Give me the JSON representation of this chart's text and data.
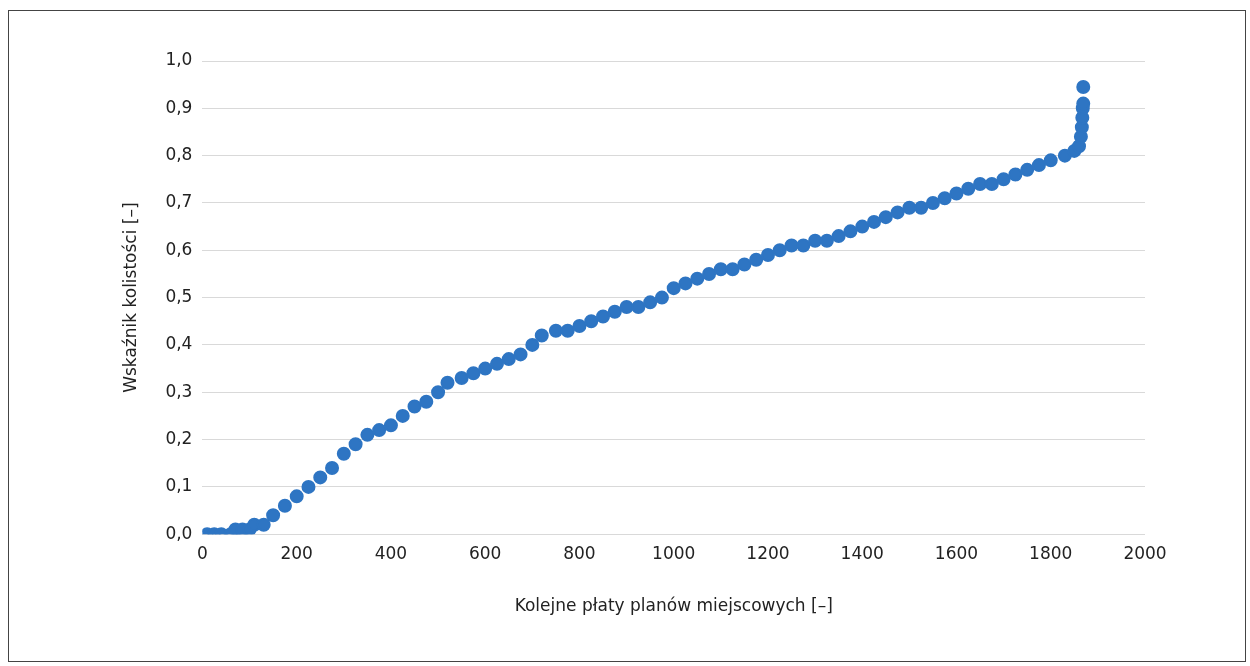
{
  "chart_data": {
    "type": "scatter",
    "xlabel": "Kolejne płaty planów miejscowych [–]",
    "ylabel": "Wskaźnik kolistości [–]",
    "x": [
      10,
      25,
      40,
      60,
      70,
      85,
      100,
      110,
      130,
      150,
      175,
      200,
      225,
      250,
      275,
      300,
      325,
      350,
      375,
      400,
      425,
      450,
      475,
      500,
      520,
      550,
      575,
      600,
      625,
      650,
      675,
      700,
      720,
      750,
      775,
      800,
      825,
      850,
      875,
      900,
      925,
      950,
      975,
      1000,
      1025,
      1050,
      1075,
      1100,
      1125,
      1150,
      1175,
      1200,
      1225,
      1250,
      1275,
      1300,
      1325,
      1350,
      1375,
      1400,
      1425,
      1450,
      1475,
      1500,
      1525,
      1550,
      1575,
      1600,
      1625,
      1650,
      1675,
      1700,
      1725,
      1750,
      1775,
      1800,
      1830,
      1850,
      1860,
      1864,
      1866,
      1867,
      1868,
      1869,
      1869
    ],
    "series": [
      {
        "color": "#2e75c3",
        "values": [
          0,
          0,
          0,
          0,
          0.01,
          0.01,
          0.01,
          0.02,
          0.02,
          0.04,
          0.06,
          0.08,
          0.1,
          0.12,
          0.14,
          0.17,
          0.19,
          0.21,
          0.22,
          0.23,
          0.25,
          0.27,
          0.28,
          0.3,
          0.32,
          0.33,
          0.34,
          0.35,
          0.36,
          0.37,
          0.38,
          0.4,
          0.42,
          0.43,
          0.43,
          0.44,
          0.45,
          0.46,
          0.47,
          0.48,
          0.48,
          0.49,
          0.5,
          0.52,
          0.53,
          0.54,
          0.55,
          0.56,
          0.56,
          0.57,
          0.58,
          0.59,
          0.6,
          0.61,
          0.61,
          0.62,
          0.62,
          0.63,
          0.64,
          0.65,
          0.66,
          0.67,
          0.68,
          0.69,
          0.69,
          0.7,
          0.71,
          0.72,
          0.73,
          0.74,
          0.74,
          0.75,
          0.76,
          0.77,
          0.78,
          0.79,
          0.8,
          0.81,
          0.82,
          0.84,
          0.86,
          0.88,
          0.9,
          0.91,
          0.945
        ]
      }
    ],
    "xlim": [
      0,
      2000
    ],
    "xticks": [
      0,
      200,
      400,
      600,
      800,
      1000,
      1200,
      1400,
      1600,
      1800,
      2000
    ],
    "ylim": [
      0,
      1
    ],
    "yticks": [
      {
        "value": 0,
        "label": "0,0"
      },
      {
        "value": 0.1,
        "label": "0,1"
      },
      {
        "value": 0.2,
        "label": "0,2"
      },
      {
        "value": 0.3,
        "label": "0,3"
      },
      {
        "value": 0.4,
        "label": "0,4"
      },
      {
        "value": 0.5,
        "label": "0,5"
      },
      {
        "value": 0.6,
        "label": "0,6"
      },
      {
        "value": 0.7,
        "label": "0,7"
      },
      {
        "value": 0.8,
        "label": "0,8"
      },
      {
        "value": 0.9,
        "label": "0,9"
      },
      {
        "value": 1,
        "label": "1,0"
      }
    ],
    "grid": "y",
    "legend": false,
    "marker": "circle"
  }
}
